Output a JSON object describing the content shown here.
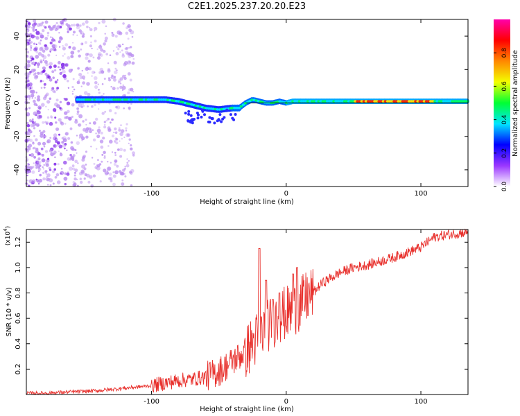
{
  "title": "C2E1.2025.237.20.20.E23",
  "chart_data": [
    {
      "type": "heatmap",
      "name": "spectrogram",
      "xlabel": "Height of straight line (km)",
      "ylabel": "Frequency (Hz)",
      "xlim": [
        -193,
        135
      ],
      "ylim": [
        -50,
        50
      ],
      "xticks": [
        -100,
        0,
        100
      ],
      "xtick_labels": [
        "-100",
        "0",
        "100"
      ],
      "yticks": [
        -40,
        -20,
        0,
        20,
        40
      ],
      "ytick_labels": [
        "-40",
        "-20",
        "0",
        "20",
        "40"
      ],
      "colorbar": {
        "label": "Normalized spectral amplitude",
        "range": [
          0,
          1
        ],
        "ticks": [
          0,
          0.2,
          0.4,
          0.6,
          0.8
        ],
        "tick_labels": [
          "0.0",
          "0.2",
          "0.4",
          "0.6",
          "0.8"
        ],
        "colors": [
          "#ffffff",
          "#9a36ff",
          "#0000ff",
          "#00e5ff",
          "#00ff33",
          "#f3ff00",
          "#ff8800",
          "#ff0000",
          "#ff00aa"
        ]
      },
      "ridge": {
        "x": [
          -155,
          -130,
          -110,
          -90,
          -80,
          -70,
          -60,
          -50,
          -40,
          -35,
          -30,
          -25,
          -20,
          -15,
          -10,
          -5,
          0,
          5,
          10,
          20,
          40,
          60,
          80,
          100,
          120,
          135
        ],
        "y": [
          2,
          2,
          2,
          2,
          1,
          -1,
          -3,
          -4,
          -3,
          -3,
          0,
          2,
          1,
          0,
          0,
          1,
          0,
          1,
          1,
          1,
          1,
          1,
          1,
          1,
          1,
          1
        ]
      }
    },
    {
      "type": "line",
      "name": "snr",
      "xlabel": "Height of straight line (km)",
      "ylabel": "SNR (10 * v/v)",
      "y_scale_label": "(x10",
      "y_scale_exp": "4",
      "y_scale_suffix": ")",
      "xlim": [
        -193,
        135
      ],
      "ylim": [
        0,
        1.3
      ],
      "xticks": [
        -100,
        0,
        100
      ],
      "xtick_labels": [
        "-100",
        "0",
        "100"
      ],
      "yticks": [
        0.2,
        0.4,
        0.6,
        0.8,
        1.0,
        1.2
      ],
      "ytick_labels": [
        "0.2",
        "0.4",
        "0.6",
        "0.8",
        "1.0",
        "1.2"
      ],
      "series": [
        {
          "name": "SNR",
          "color": "#e8302c",
          "x": [
            -193,
            -180,
            -160,
            -140,
            -130,
            -120,
            -110,
            -100,
            -90,
            -80,
            -70,
            -60,
            -50,
            -45,
            -40,
            -35,
            -30,
            -25,
            -20,
            -15,
            -10,
            -5,
            0,
            5,
            10,
            15,
            20,
            25,
            30,
            40,
            50,
            60,
            70,
            80,
            90,
            100,
            105,
            110,
            120,
            135
          ],
          "y": [
            0.01,
            0.01,
            0.02,
            0.03,
            0.04,
            0.05,
            0.06,
            0.07,
            0.09,
            0.11,
            0.12,
            0.14,
            0.18,
            0.22,
            0.26,
            0.3,
            0.34,
            0.4,
            0.46,
            0.52,
            0.58,
            0.62,
            0.64,
            0.66,
            0.7,
            0.76,
            0.8,
            0.86,
            0.9,
            0.96,
            1.0,
            1.02,
            1.05,
            1.08,
            1.12,
            1.16,
            1.2,
            1.24,
            1.26,
            1.28
          ]
        }
      ],
      "spikes": {
        "x": [
          -20,
          -15,
          -10,
          -5,
          5,
          8
        ],
        "y": [
          1.15,
          0.9,
          0.75,
          0.8,
          0.95,
          1.0
        ]
      }
    }
  ]
}
